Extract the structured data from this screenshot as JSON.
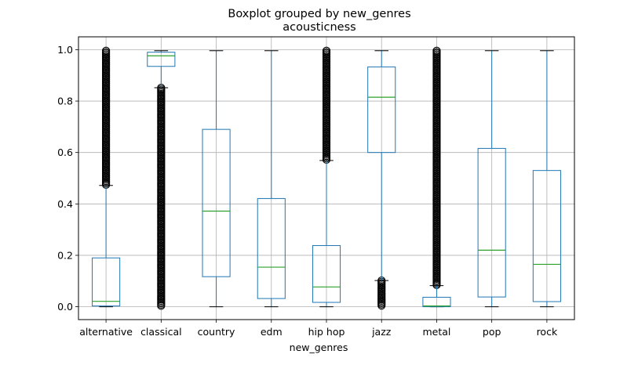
{
  "chart_data": {
    "type": "box",
    "title": "Boxplot grouped by new_genres",
    "subtitle": "acousticness",
    "xlabel": "new_genres",
    "ylabel": "",
    "ylim": [
      -0.05,
      1.05
    ],
    "yticks": [
      "0.0",
      "0.2",
      "0.4",
      "0.6",
      "0.8",
      "1.0"
    ],
    "grid": true,
    "colors": {
      "box": "#1f77b4",
      "median": "#2ca02c",
      "whisker": "#1f77b4",
      "flier": "#000000",
      "grid": "#b0b0b0"
    },
    "categories": [
      "alternative",
      "classical",
      "country",
      "edm",
      "hip hop",
      "jazz",
      "metal",
      "pop",
      "rock"
    ],
    "boxes": [
      {
        "whislo": 0.0,
        "q1": 0.003,
        "med": 0.021,
        "q3": 0.19,
        "whishi": 0.472,
        "fliers_range": [
          0.472,
          0.996
        ]
      },
      {
        "whislo": 0.852,
        "q1": 0.935,
        "med": 0.976,
        "q3": 0.99,
        "whishi": 0.996,
        "fliers_range": [
          0.0,
          0.852
        ]
      },
      {
        "whislo": 0.0,
        "q1": 0.117,
        "med": 0.372,
        "q3": 0.69,
        "whishi": 0.996,
        "fliers_range": null
      },
      {
        "whislo": 0.0,
        "q1": 0.032,
        "med": 0.154,
        "q3": 0.421,
        "whishi": 0.996,
        "fliers_range": null
      },
      {
        "whislo": 0.0,
        "q1": 0.017,
        "med": 0.077,
        "q3": 0.238,
        "whishi": 0.569,
        "fliers_range": [
          0.569,
          0.996
        ]
      },
      {
        "whislo": 0.102,
        "q1": 0.6,
        "med": 0.815,
        "q3": 0.933,
        "whishi": 0.996,
        "fliers_range": [
          0.0,
          0.102
        ]
      },
      {
        "whislo": 0.0,
        "q1": 0.0,
        "med": 0.003,
        "q3": 0.037,
        "whishi": 0.082,
        "fliers_range": [
          0.082,
          0.996
        ]
      },
      {
        "whislo": 0.0,
        "q1": 0.038,
        "med": 0.22,
        "q3": 0.616,
        "whishi": 0.996,
        "fliers_range": null
      },
      {
        "whislo": 0.0,
        "q1": 0.02,
        "med": 0.165,
        "q3": 0.53,
        "whishi": 0.996,
        "fliers_range": null
      }
    ]
  }
}
